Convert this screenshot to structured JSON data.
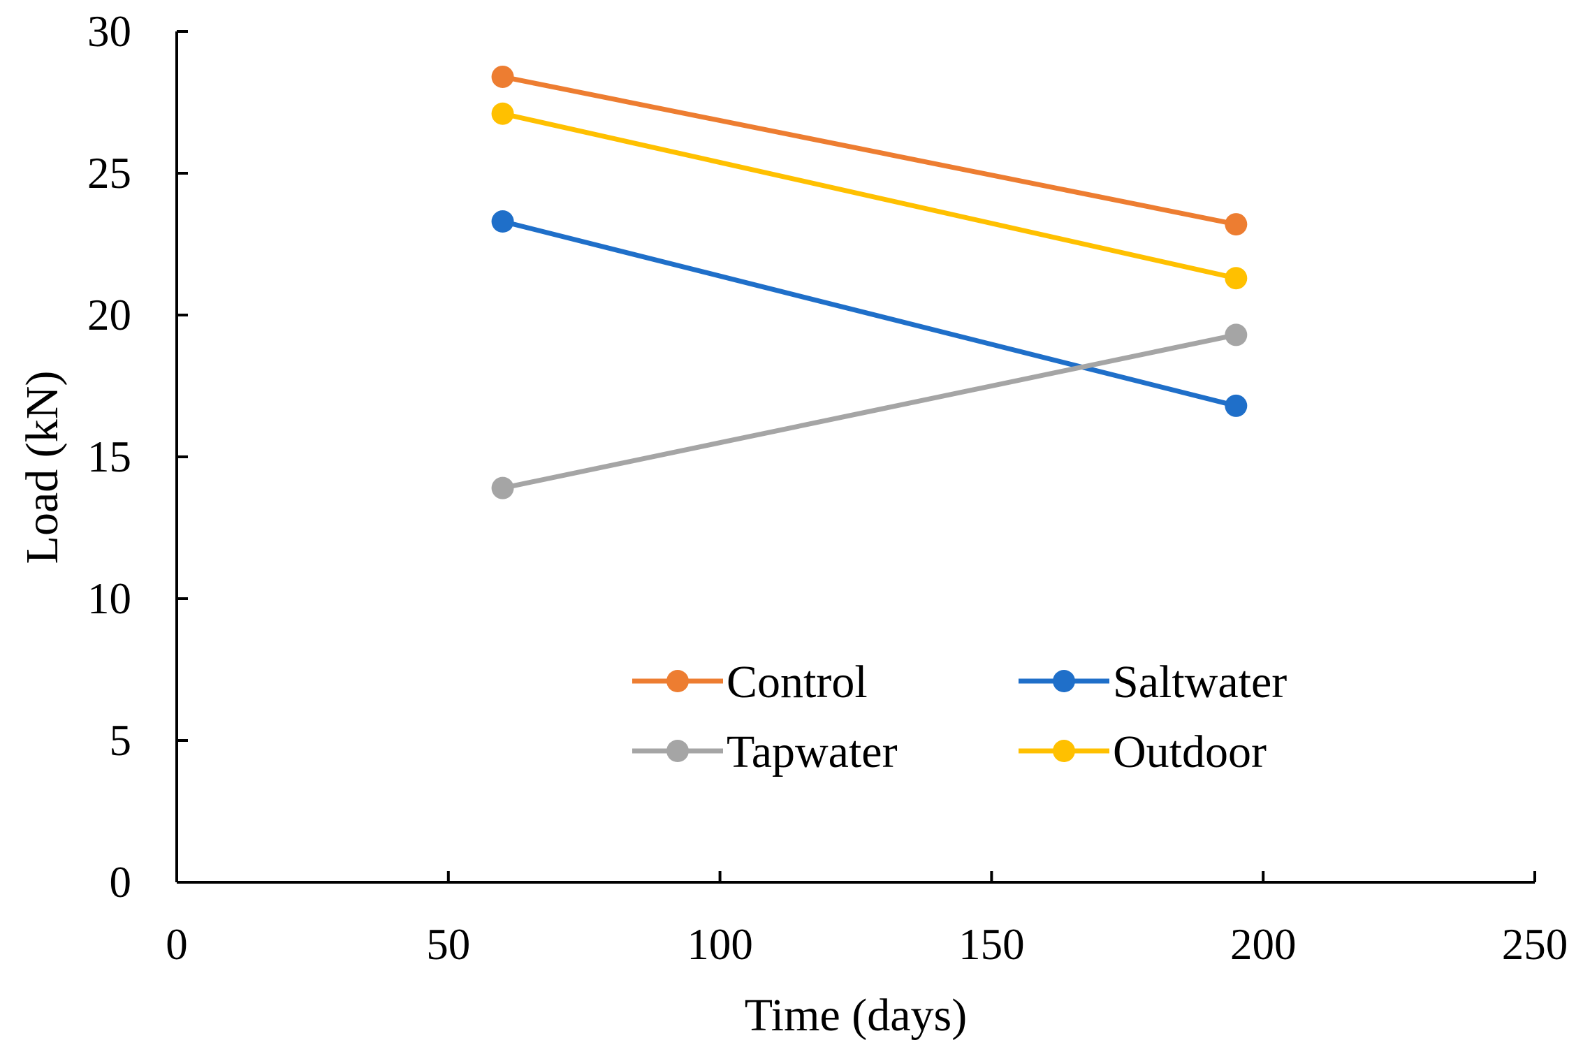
{
  "chart_data": {
    "type": "line",
    "title": "",
    "xlabel": "Time (days)",
    "ylabel": "Load (kN)",
    "xlim": [
      0,
      250
    ],
    "ylim": [
      0,
      30
    ],
    "xticks": [
      0,
      50,
      100,
      150,
      200,
      250
    ],
    "yticks": [
      0,
      5,
      10,
      15,
      20,
      25,
      30
    ],
    "grid": false,
    "legend_position": "center-bottom",
    "series": [
      {
        "name": "Control",
        "color": "#ED7D31",
        "points": [
          [
            60,
            28.4
          ],
          [
            195,
            23.2
          ]
        ]
      },
      {
        "name": "Saltwater",
        "color": "#1F6FC9",
        "points": [
          [
            60,
            23.3
          ],
          [
            195,
            16.8
          ]
        ]
      },
      {
        "name": "Tapwater",
        "color": "#A5A5A5",
        "points": [
          [
            60,
            13.9
          ],
          [
            195,
            19.3
          ]
        ]
      },
      {
        "name": "Outdoor",
        "color": "#FFC000",
        "points": [
          [
            60,
            27.1
          ],
          [
            195,
            21.3
          ]
        ]
      }
    ]
  }
}
